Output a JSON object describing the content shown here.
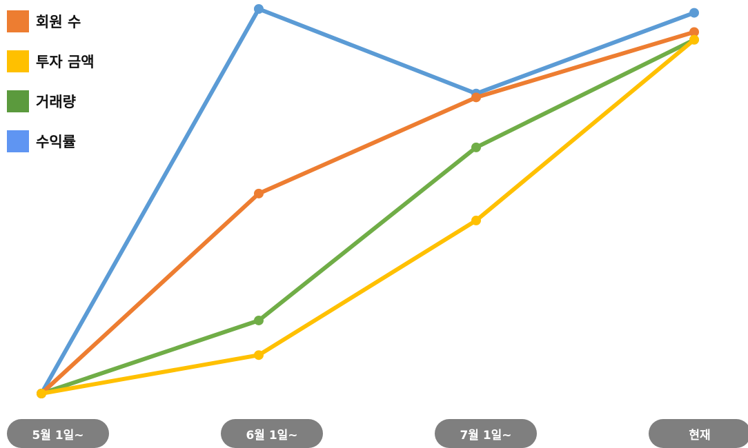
{
  "chart_data": {
    "type": "line",
    "categories": [
      "5월 1일~",
      "6월 1일~",
      "7월 1일~",
      "현재"
    ],
    "series": [
      {
        "name": "회원 수",
        "color": "#ed7d31",
        "values": [
          0,
          52,
          77,
          94
        ]
      },
      {
        "name": "투자 금액",
        "color": "#ffc000",
        "values": [
          0,
          10,
          45,
          92
        ]
      },
      {
        "name": "거래량",
        "color": "#70ad47",
        "values": [
          0,
          19,
          64,
          92
        ]
      },
      {
        "name": "수익률",
        "color": "#5b9bd5",
        "values": [
          0,
          100,
          78,
          99
        ]
      }
    ],
    "legend": [
      {
        "label": "회원 수",
        "color": "#ed7d31"
      },
      {
        "label": "투자 금액",
        "color": "#ffc000"
      },
      {
        "label": "거래량",
        "color": "#5b9a3d"
      },
      {
        "label": "수익률",
        "color": "#5f95f2"
      }
    ],
    "ylim": [
      0,
      100
    ],
    "legend_position": "top-left",
    "grid": false,
    "xaxis_label_color": "#7f7f7f"
  }
}
